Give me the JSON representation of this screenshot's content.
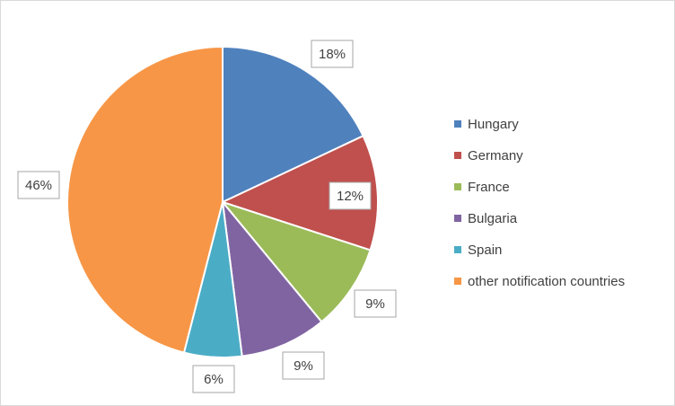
{
  "chart_data": {
    "type": "pie",
    "categories": [
      "Hungary",
      "Germany",
      "France",
      "Bulgaria",
      "Spain",
      "other notification countries"
    ],
    "values": [
      18,
      12,
      9,
      9,
      6,
      46
    ],
    "value_labels": [
      "18%",
      "12%",
      "9%",
      "9%",
      "6%",
      "46%"
    ],
    "colors": [
      "#4f81bd",
      "#c0504d",
      "#9bbb59",
      "#8064a2",
      "#4bacc6",
      "#f79646"
    ],
    "legend": "right"
  }
}
